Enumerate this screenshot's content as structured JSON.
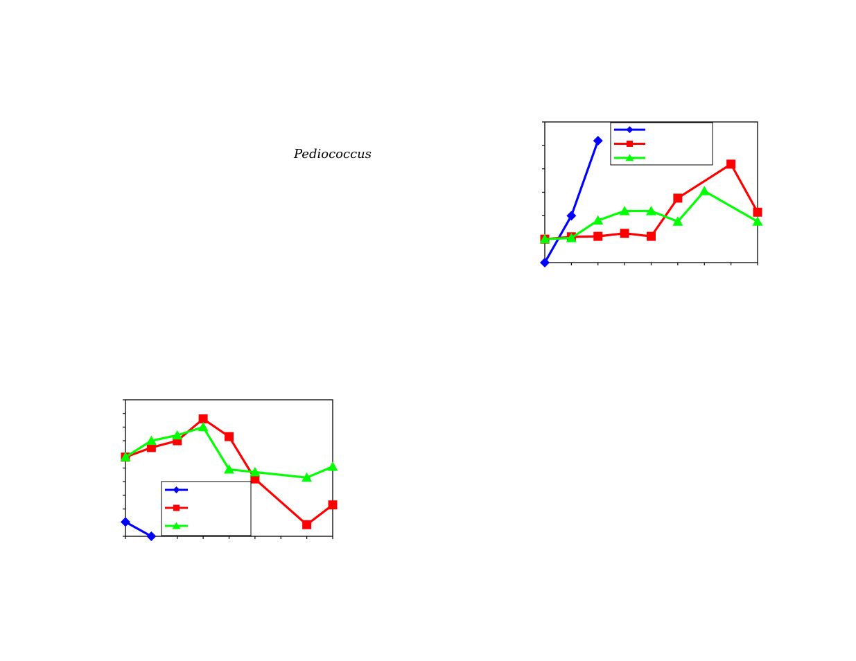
{
  "caption": "Pediococcus",
  "colors": {
    "blue": "#0000ff",
    "red": "#ff0000",
    "green": "#00ff00",
    "axis": "#000000"
  },
  "chart_data": [
    {
      "id": "left",
      "type": "line",
      "title": "",
      "xlabel": "",
      "ylabel": "",
      "x": [
        0,
        1,
        2,
        3,
        4,
        5,
        6,
        7,
        8
      ],
      "xlim": [
        0,
        8
      ],
      "ylim": [
        0,
        10
      ],
      "grid": false,
      "legend_position": "bottom-center",
      "series": [
        {
          "color": "blue",
          "marker": "diamond",
          "values": [
            1.05,
            0,
            null,
            null,
            null,
            null,
            null,
            null,
            null
          ]
        },
        {
          "color": "red",
          "marker": "square",
          "values": [
            5.8,
            6.5,
            7.0,
            8.6,
            7.3,
            4.2,
            null,
            0.85,
            2.3
          ]
        },
        {
          "color": "green",
          "marker": "triangle",
          "values": [
            5.8,
            7.0,
            7.4,
            8.0,
            4.9,
            4.7,
            null,
            4.3,
            5.1
          ]
        }
      ]
    },
    {
      "id": "right",
      "type": "line",
      "title": "",
      "xlabel": "",
      "ylabel": "",
      "x": [
        0,
        1,
        2,
        3,
        4,
        5,
        6,
        7,
        8
      ],
      "xlim": [
        0,
        8
      ],
      "ylim": [
        0,
        6
      ],
      "grid": false,
      "legend_position": "top-center",
      "series": [
        {
          "color": "blue",
          "marker": "diamond",
          "values": [
            0,
            2.0,
            5.2,
            null,
            null,
            null,
            null,
            null,
            null
          ]
        },
        {
          "color": "red",
          "marker": "square",
          "values": [
            1.0,
            1.1,
            1.12,
            1.25,
            1.12,
            2.75,
            null,
            4.2,
            2.15
          ]
        },
        {
          "color": "green",
          "marker": "triangle",
          "values": [
            1.0,
            1.05,
            1.8,
            2.2,
            2.2,
            1.75,
            3.05,
            null,
            1.75
          ]
        }
      ]
    }
  ]
}
